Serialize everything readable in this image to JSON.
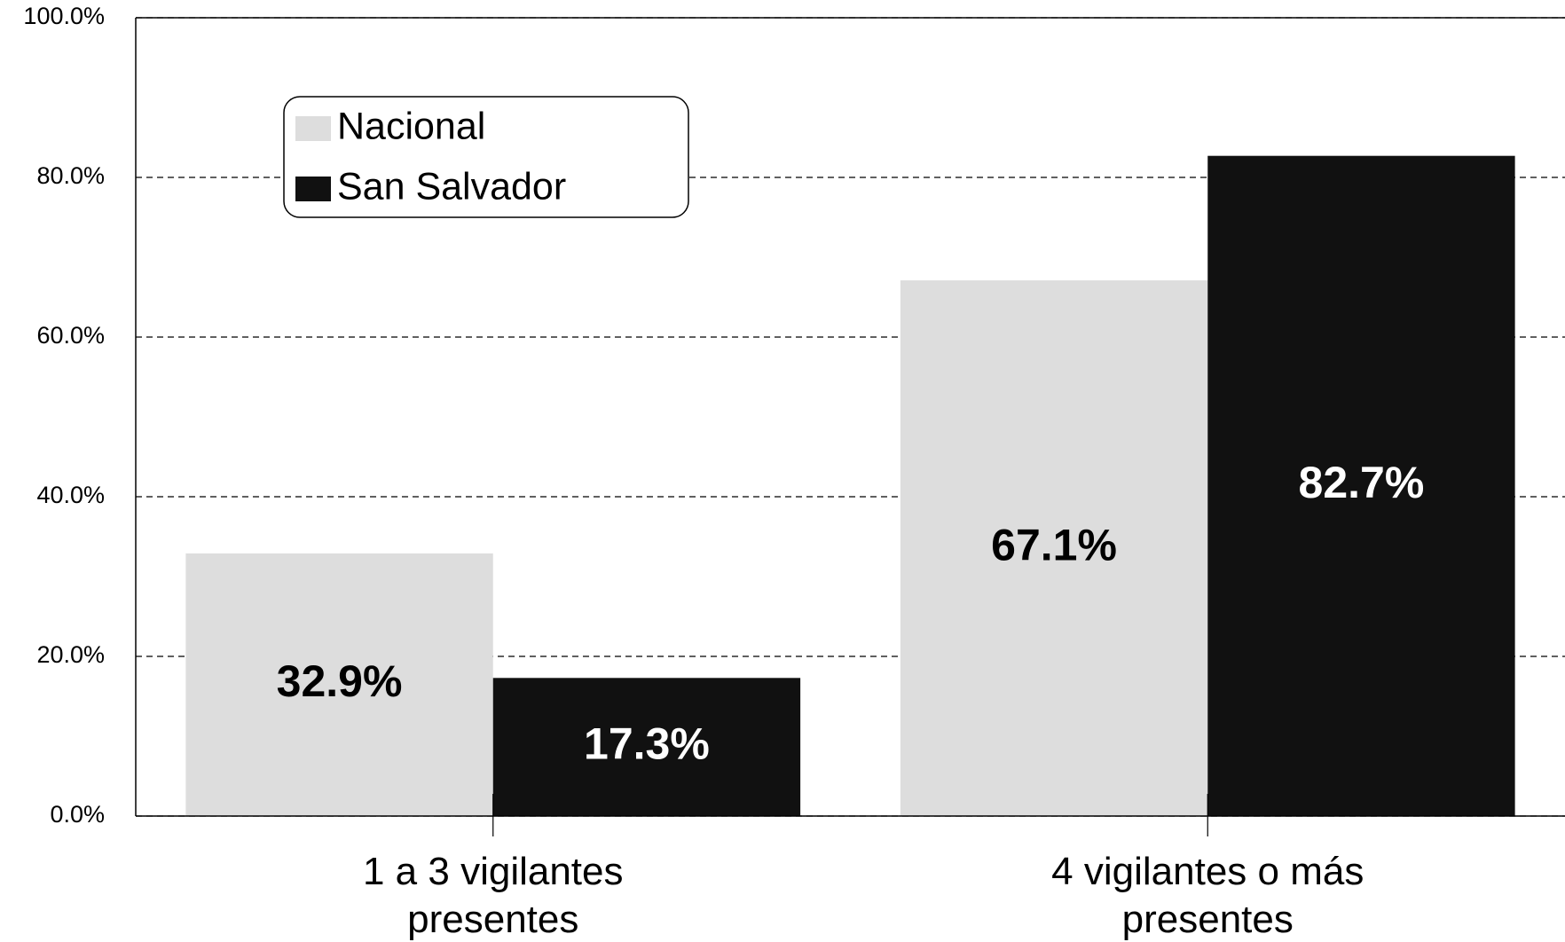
{
  "chart_data": {
    "type": "bar",
    "categories": [
      "1 a 3 vigilantes\npresentes",
      "4 vigilantes o más\npresentes"
    ],
    "series": [
      {
        "name": "Nacional",
        "color": "#dddddd",
        "values": [
          32.9,
          67.1
        ],
        "value_labels": [
          "32.9%",
          "67.1%"
        ],
        "label_color": "#000000"
      },
      {
        "name": "San Salvador",
        "color": "#111111",
        "values": [
          17.3,
          82.7
        ],
        "value_labels": [
          "17.3%",
          "82.7%"
        ],
        "label_color": "#ffffff"
      }
    ],
    "ylim": [
      0,
      100
    ],
    "yticks": [
      {
        "value": 0,
        "label": "0.0%"
      },
      {
        "value": 20,
        "label": "20.0%"
      },
      {
        "value": 40,
        "label": "40.0%"
      },
      {
        "value": 60,
        "label": "60.0%"
      },
      {
        "value": 80,
        "label": "80.0%"
      },
      {
        "value": 100,
        "label": "100.0%"
      }
    ],
    "grid": true,
    "legend": "upper left"
  }
}
